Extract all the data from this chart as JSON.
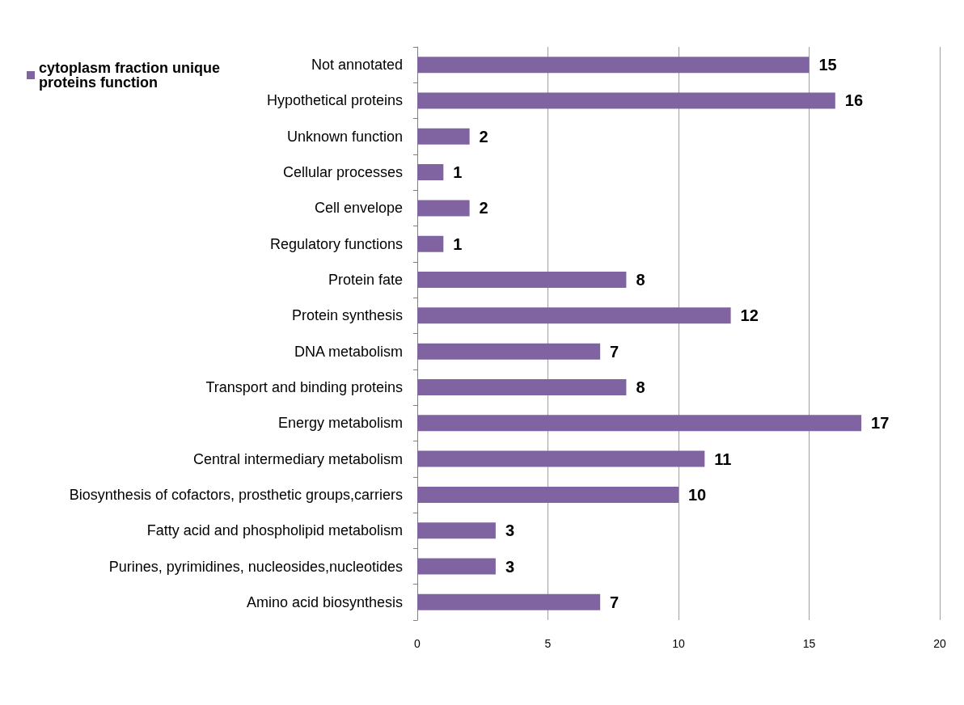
{
  "chart_data": {
    "type": "bar",
    "orientation": "horizontal",
    "categories": [
      "Not annotated",
      "Hypothetical proteins",
      "Unknown function",
      "Cellular processes",
      "Cell envelope",
      "Regulatory functions",
      "Protein fate",
      "Protein synthesis",
      "DNA metabolism",
      "Transport and binding proteins",
      "Energy metabolism",
      "Central intermediary metabolism",
      "Biosynthesis of cofactors, prosthetic groups,carriers",
      "Fatty acid and phospholipid metabolism",
      "Purines, pyrimidines, nucleosides,nucleotides",
      "Amino acid biosynthesis"
    ],
    "series": [
      {
        "name": "cytoplasm fraction unique proteins function",
        "color": "#8064a2",
        "values": [
          15,
          16,
          2,
          1,
          2,
          1,
          8,
          12,
          7,
          8,
          17,
          11,
          10,
          3,
          3,
          7
        ]
      }
    ],
    "xlim": [
      0,
      20
    ],
    "xticks": [
      0,
      5,
      10,
      15,
      20
    ],
    "grid": "x",
    "legend": "top left",
    "data_labels": true
  }
}
